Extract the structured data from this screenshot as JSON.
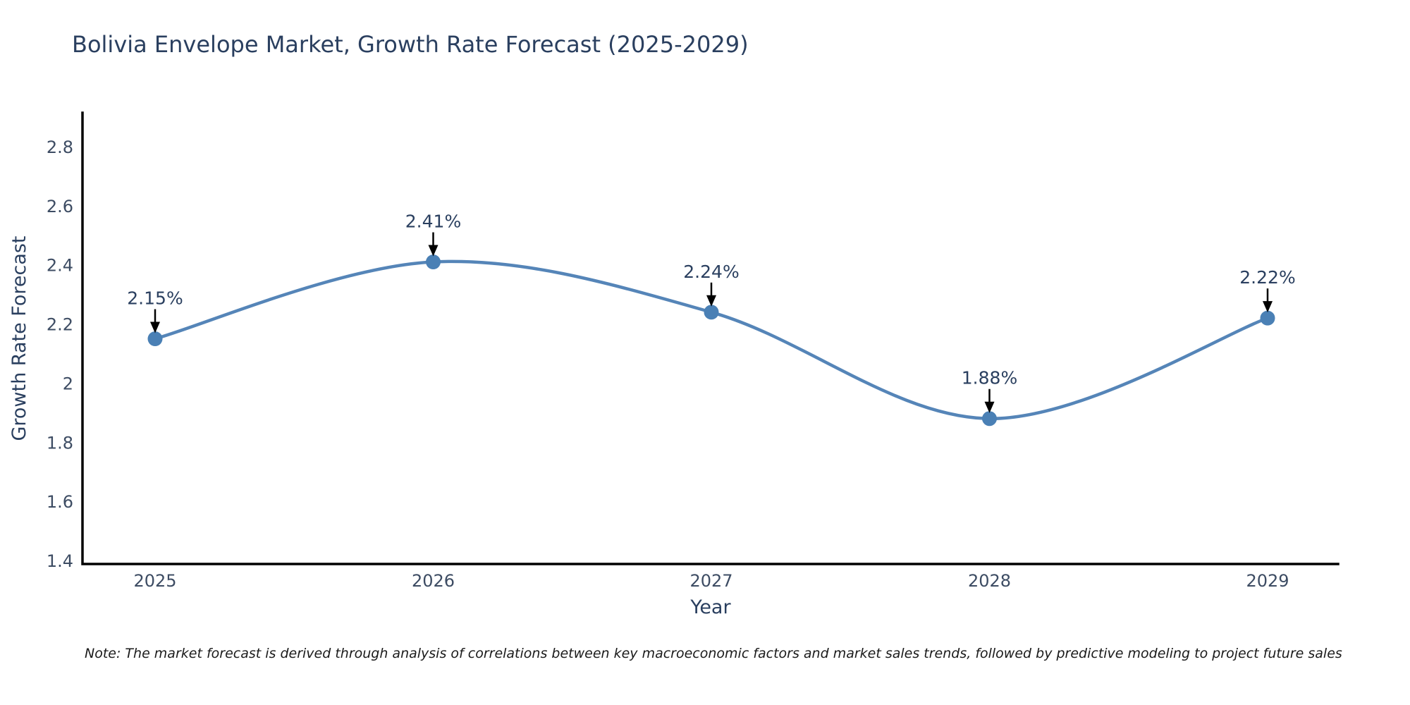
{
  "title": "Bolivia Envelope Market, Growth Rate Forecast (2025-2029)",
  "note": "Note: The market forecast is derived through analysis of correlations between key macroeconomic factors and market sales trends, followed by predictive modeling to project future sales",
  "colors": {
    "background": "#ffffff",
    "title_text": "#2a3f5f",
    "axis_line": "#000000",
    "tick_text": "#3d4c63",
    "series_line": "#5585b8",
    "marker_fill": "#4a80b5",
    "annotation_text": "#2a3f5f",
    "arrow": "#000000",
    "note_text": "#1a1a1a"
  },
  "chart_data": {
    "type": "line",
    "title": "Bolivia Envelope Market, Growth Rate Forecast (2025-2029)",
    "x": [
      2025,
      2026,
      2027,
      2028,
      2029
    ],
    "values": [
      2.15,
      2.41,
      2.24,
      1.88,
      2.22
    ],
    "point_labels": [
      "2.15%",
      "2.41%",
      "2.24%",
      "1.88%",
      "2.22%"
    ],
    "series_name": "Growth Rate Forecast",
    "xlabel": "Year",
    "ylabel": "Growth Rate Forecast",
    "ylim": [
      1.4,
      2.8
    ],
    "yticks": [
      1.4,
      1.6,
      1.8,
      2,
      2.2,
      2.4,
      2.6,
      2.8
    ],
    "xticks": [
      "2025",
      "2026",
      "2027",
      "2028",
      "2029"
    ],
    "line_shape": "spline",
    "grid": false,
    "legend_position": "none",
    "annotations": "value labels with downward arrows above each point"
  }
}
